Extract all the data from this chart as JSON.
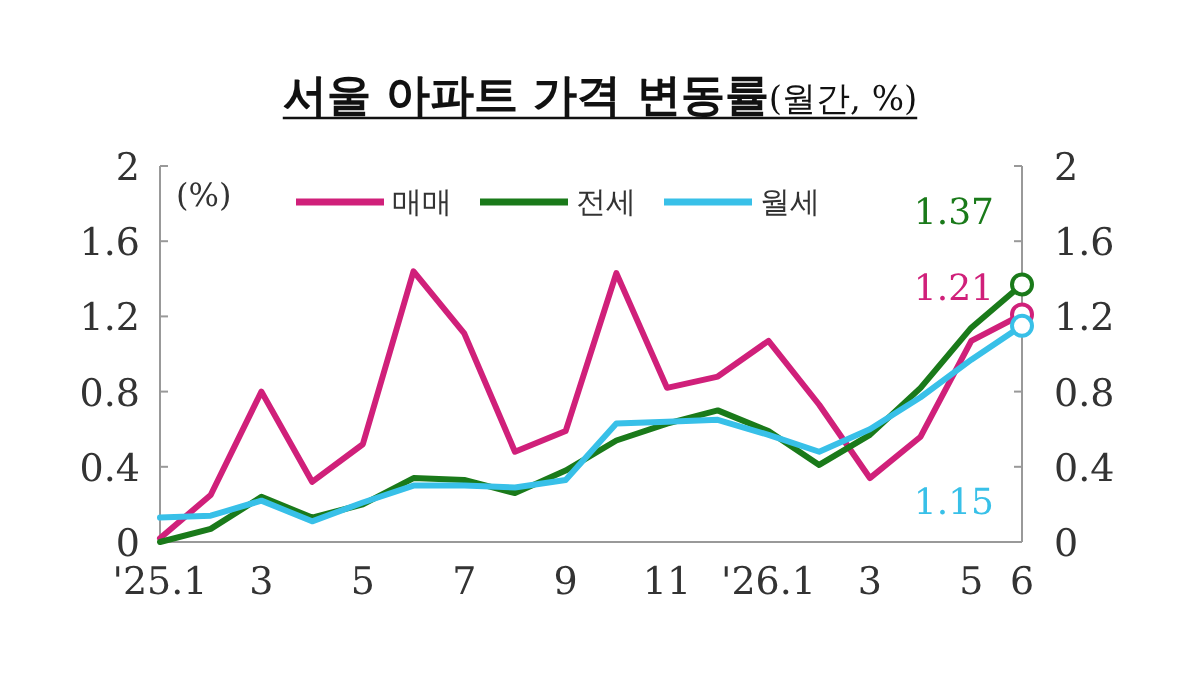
{
  "chart_data": {
    "type": "line",
    "title": "**서울 아파트 가격 변동률**(월간, %)",
    "ylabel": "(%)",
    "categories": [
      "'25.1",
      null,
      "3",
      null,
      "5",
      null,
      "7",
      null,
      "9",
      null,
      "11",
      null,
      "'26.1",
      null,
      "3",
      null,
      "5",
      "6"
    ],
    "series": [
      {
        "name": "매매",
        "color": "#d0207a",
        "values": [
          0.02,
          0.25,
          0.8,
          0.32,
          0.52,
          1.44,
          1.11,
          0.48,
          0.59,
          1.43,
          0.82,
          0.88,
          1.07,
          0.73,
          0.34,
          0.56,
          1.07,
          1.21
        ]
      },
      {
        "name": "전세",
        "color": "#1a7a1a",
        "values": [
          0.0,
          0.07,
          0.24,
          0.13,
          0.2,
          0.34,
          0.33,
          0.26,
          0.38,
          0.54,
          0.63,
          0.7,
          0.59,
          0.41,
          0.57,
          0.82,
          1.14,
          1.37
        ]
      },
      {
        "name": "월세",
        "color": "#38c0e8",
        "values": [
          0.13,
          0.14,
          0.22,
          0.11,
          0.21,
          0.3,
          0.3,
          0.29,
          0.33,
          0.63,
          0.64,
          0.65,
          0.57,
          0.48,
          0.6,
          0.77,
          0.97,
          1.15
        ]
      }
    ],
    "annotations": [
      "1.21",
      "1.37",
      "1.15"
    ],
    "ylim": [
      0,
      2
    ],
    "yticks": [
      0,
      0.4,
      0.8,
      1.2,
      1.6,
      2
    ],
    "y2lim": [
      0,
      2
    ],
    "y2ticks": [
      0,
      0.4,
      0.8,
      1.2,
      1.6,
      2
    ],
    "legend": "top",
    "grid": false
  }
}
